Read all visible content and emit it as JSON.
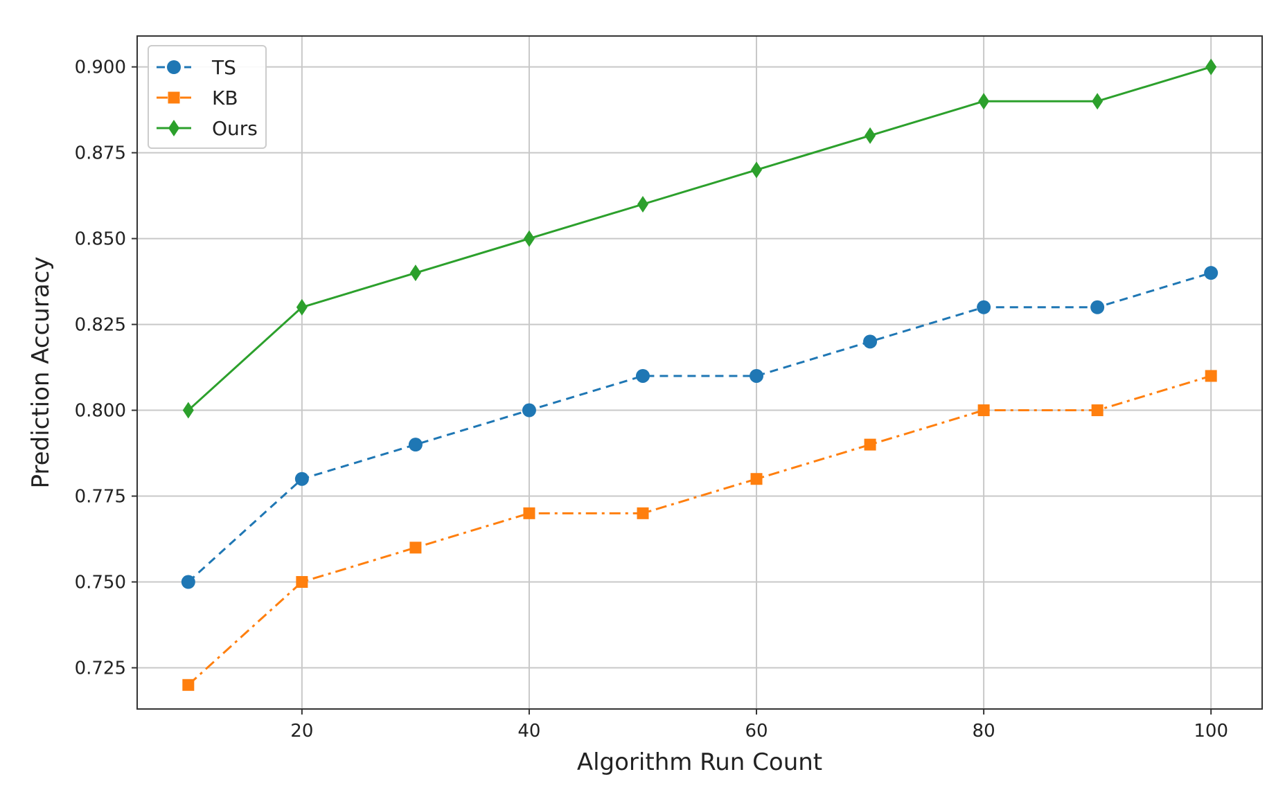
{
  "chart_data": {
    "type": "line",
    "title": "",
    "xlabel": "Algorithm Run Count",
    "ylabel": "Prediction Accuracy",
    "x": [
      10,
      20,
      30,
      40,
      50,
      60,
      70,
      80,
      90,
      100
    ],
    "xlim": [
      5.5,
      104.5
    ],
    "ylim": [
      0.713,
      0.909
    ],
    "xticks": [
      20,
      40,
      60,
      80,
      100
    ],
    "xtick_labels": [
      "20",
      "40",
      "60",
      "80",
      "100"
    ],
    "yticks": [
      0.725,
      0.75,
      0.775,
      0.8,
      0.825,
      0.85,
      0.875,
      0.9
    ],
    "ytick_labels": [
      "0.725",
      "0.750",
      "0.775",
      "0.800",
      "0.825",
      "0.850",
      "0.875",
      "0.900"
    ],
    "grid": true,
    "legend_position": "top-left",
    "series": [
      {
        "name": "TS",
        "color": "#1f77b4",
        "line_style": "dashed",
        "marker": "circle",
        "values": [
          0.75,
          0.78,
          0.79,
          0.8,
          0.81,
          0.81,
          0.82,
          0.83,
          0.83,
          0.84
        ]
      },
      {
        "name": "KB",
        "color": "#ff7f0e",
        "line_style": "dash-dot",
        "marker": "square",
        "values": [
          0.72,
          0.75,
          0.76,
          0.77,
          0.77,
          0.78,
          0.79,
          0.8,
          0.8,
          0.81
        ]
      },
      {
        "name": "Ours",
        "color": "#2ca02c",
        "line_style": "solid",
        "marker": "diamond",
        "values": [
          0.8,
          0.83,
          0.84,
          0.85,
          0.86,
          0.87,
          0.88,
          0.89,
          0.89,
          0.9
        ]
      }
    ]
  }
}
